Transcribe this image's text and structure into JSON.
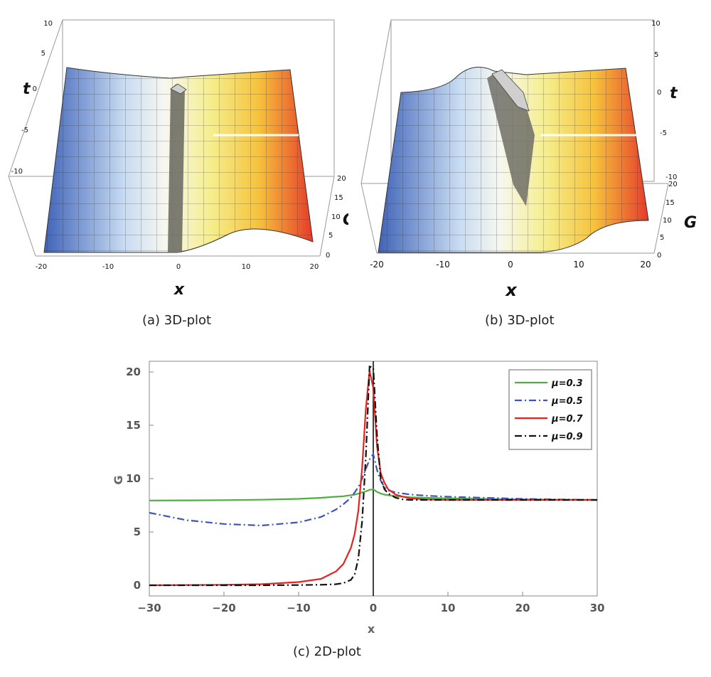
{
  "panels": [
    {
      "caption": "(a) 3D-plot",
      "x_label": "x",
      "y_label": "t",
      "z_label": "G",
      "x_ticks": [
        "-20",
        "-10",
        "0",
        "10",
        "20"
      ],
      "t_ticks": [
        "10",
        "5",
        "0",
        "-5",
        "-10"
      ],
      "g_ticks": [
        "20",
        "15",
        "10",
        "5",
        "0"
      ]
    },
    {
      "caption": "(b) 3D-plot",
      "x_label": "x",
      "y_label": "t",
      "z_label": "G",
      "x_ticks": [
        "-20",
        "-10",
        "0",
        "10",
        "20"
      ],
      "t_ticks": [
        "10",
        "5",
        "0",
        "-5",
        "-10"
      ],
      "g_ticks": [
        "20",
        "15",
        "10",
        "5",
        "0"
      ]
    }
  ],
  "chart_data": {
    "type": "line",
    "caption": "(c) 2D-plot",
    "xlabel": "x",
    "ylabel": "G",
    "xlim": [
      -30,
      30
    ],
    "ylim": [
      -1,
      21
    ],
    "x_ticks": [
      -30,
      -20,
      -10,
      0,
      10,
      20,
      30
    ],
    "y_ticks": [
      0,
      5,
      10,
      15,
      20
    ],
    "legend_position": "top-right",
    "x": [
      -30,
      -25,
      -20,
      -15,
      -10,
      -7,
      -5,
      -4,
      -3,
      -2.5,
      -2,
      -1.5,
      -1,
      -0.5,
      0,
      0.5,
      1,
      1.5,
      2,
      3,
      4,
      5,
      7,
      10,
      15,
      20,
      25,
      30
    ],
    "series": [
      {
        "name": "μ=0.3",
        "color": "#4caf3f",
        "dash": "solid",
        "values": [
          7.95,
          7.96,
          7.98,
          8.02,
          8.1,
          8.2,
          8.3,
          8.35,
          8.45,
          8.5,
          8.6,
          8.7,
          8.8,
          8.95,
          9.0,
          8.75,
          8.6,
          8.5,
          8.45,
          8.35,
          8.3,
          8.25,
          8.2,
          8.15,
          8.1,
          8.05,
          8.02,
          8.0
        ]
      },
      {
        "name": "μ=0.5",
        "color": "#3b55b8",
        "dash": "dashdot",
        "values": [
          6.8,
          6.1,
          5.75,
          5.6,
          5.9,
          6.4,
          7.1,
          7.6,
          8.2,
          8.7,
          9.2,
          10.0,
          10.9,
          11.8,
          12.3,
          10.8,
          9.8,
          9.2,
          8.9,
          8.7,
          8.6,
          8.5,
          8.4,
          8.3,
          8.2,
          8.1,
          8.05,
          8.0
        ]
      },
      {
        "name": "μ=0.7",
        "color": "#e52421",
        "dash": "solid",
        "values": [
          0.0,
          0.02,
          0.05,
          0.1,
          0.3,
          0.6,
          1.3,
          2.0,
          3.5,
          4.8,
          7.0,
          11.0,
          16.5,
          20.1,
          18.5,
          13.0,
          10.5,
          9.6,
          9.0,
          8.5,
          8.3,
          8.15,
          8.05,
          8.0,
          8.0,
          8.0,
          8.0,
          8.0
        ]
      },
      {
        "name": "μ=0.9",
        "color": "#111111",
        "dash": "dashdot",
        "values": [
          0.0,
          0.0,
          0.0,
          0.0,
          0.02,
          0.05,
          0.1,
          0.2,
          0.5,
          1.0,
          2.5,
          6.0,
          12.0,
          20.5,
          20.4,
          14.0,
          10.0,
          9.0,
          8.6,
          8.2,
          8.05,
          8.0,
          8.0,
          8.0,
          8.0,
          8.0,
          8.0,
          8.0
        ]
      }
    ]
  }
}
